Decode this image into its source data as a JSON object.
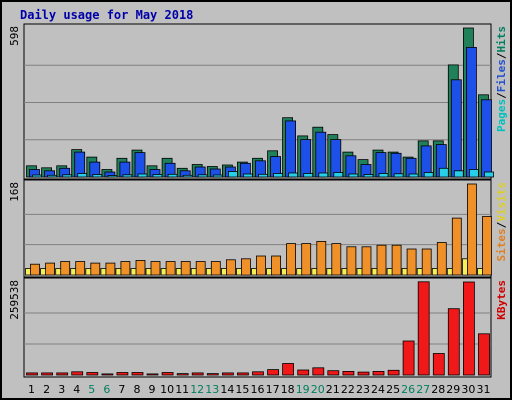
{
  "chart_data": {
    "type": "bar",
    "title": "Daily usage for May 2018",
    "categories": [
      "1",
      "2",
      "3",
      "4",
      "5",
      "6",
      "7",
      "8",
      "9",
      "10",
      "11",
      "12",
      "13",
      "14",
      "15",
      "16",
      "17",
      "18",
      "19",
      "20",
      "21",
      "22",
      "23",
      "24",
      "25",
      "26",
      "27",
      "28",
      "29",
      "30",
      "31"
    ],
    "weekend_days": [
      "5",
      "6",
      "12",
      "13",
      "19",
      "20",
      "26",
      "27"
    ],
    "panels": [
      {
        "max_label": "598",
        "ylim": [
          0,
          598
        ],
        "side_labels": [
          "Pages",
          "/",
          "Files",
          "/",
          "Hits"
        ],
        "side_colors": [
          "#00c0c0",
          "#000000",
          "#2050d0",
          "#000000",
          "#008060"
        ],
        "series": [
          {
            "name": "Hits",
            "color": "#20805a",
            "values": [
              45,
              37,
              45,
              110,
              80,
              30,
              75,
              108,
              45,
              75,
              35,
              50,
              42,
              48,
              60,
              75,
              105,
              238,
              165,
              200,
              170,
              100,
              70,
              108,
              100,
              80,
              145,
              145,
              450,
              598,
              330
            ]
          },
          {
            "name": "Files",
            "color": "#1d50e8",
            "values": [
              30,
              25,
              35,
              100,
              60,
              20,
              60,
              98,
              30,
              55,
              25,
              40,
              32,
              40,
              55,
              65,
              82,
              225,
              150,
              180,
              150,
              85,
              50,
              98,
              95,
              75,
              125,
              130,
              390,
              520,
              310
            ]
          },
          {
            "name": "Pages",
            "color": "#27d0e8",
            "values": [
              8,
              7,
              9,
              14,
              10,
              6,
              9,
              12,
              10,
              11,
              7,
              9,
              8,
              22,
              12,
              11,
              14,
              16,
              14,
              16,
              18,
              12,
              10,
              14,
              13,
              12,
              18,
              35,
              25,
              30,
              20
            ]
          }
        ]
      },
      {
        "max_label": "168",
        "ylim": [
          0,
          168
        ],
        "side_labels": [
          "Sites",
          "/",
          "Visits"
        ],
        "side_colors": [
          "#e08020",
          "#000000",
          "#e0d020"
        ],
        "series": [
          {
            "name": "Visits",
            "color": "#f5f05a",
            "values": [
              12,
              12,
              12,
              12,
              12,
              12,
              12,
              12,
              12,
              12,
              12,
              12,
              12,
              12,
              12,
              12,
              12,
              12,
              12,
              12,
              12,
              12,
              12,
              12,
              12,
              12,
              12,
              12,
              12,
              30,
              12
            ]
          },
          {
            "name": "Sites",
            "color": "#f09028",
            "values": [
              20,
              22,
              25,
              25,
              22,
              22,
              25,
              27,
              25,
              25,
              25,
              25,
              25,
              28,
              30,
              35,
              35,
              58,
              58,
              62,
              58,
              52,
              52,
              55,
              55,
              48,
              48,
              60,
              105,
              168,
              108
            ]
          }
        ]
      },
      {
        "max_label": "259538",
        "ylim": [
          0,
          259538
        ],
        "side_labels": [
          "KBytes"
        ],
        "side_colors": [
          "#d00000"
        ],
        "series": [
          {
            "name": "KBytes",
            "color": "#f01818",
            "values": [
              6000,
              6000,
              6000,
              9000,
              7000,
              3000,
              7000,
              7000,
              3000,
              7000,
              4000,
              6000,
              4000,
              6000,
              6000,
              9000,
              15000,
              32000,
              14000,
              20000,
              12000,
              10000,
              8000,
              10000,
              13000,
              95000,
              260000,
              60000,
              185000,
              259538,
              115000
            ]
          }
        ]
      }
    ]
  }
}
